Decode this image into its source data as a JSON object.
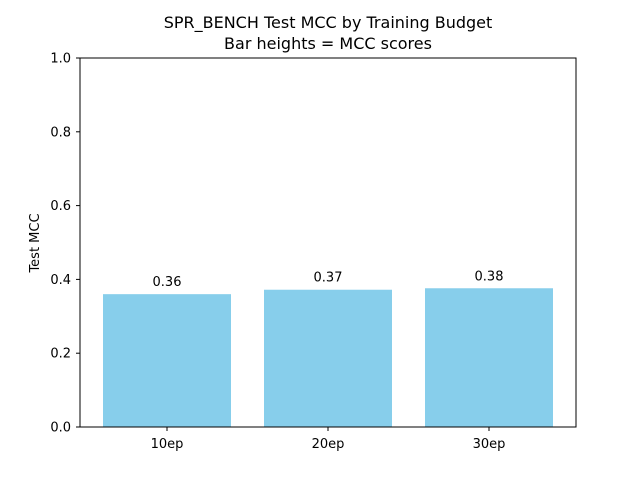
{
  "chart_data": {
    "type": "bar",
    "title": "SPR_BENCH Test MCC by Training Budget",
    "subtitle": "Bar heights = MCC scores",
    "xlabel": "",
    "ylabel": "Test MCC",
    "categories": [
      "10ep",
      "20ep",
      "30ep"
    ],
    "values": [
      0.36,
      0.372,
      0.376
    ],
    "value_labels": [
      "0.36",
      "0.37",
      "0.38"
    ],
    "ylim": [
      0,
      1.0
    ],
    "yticks": [
      0.0,
      0.2,
      0.4,
      0.6,
      0.8,
      1.0
    ],
    "ytick_labels": [
      "0.0",
      "0.2",
      "0.4",
      "0.6",
      "0.8",
      "1.0"
    ],
    "bar_color": "#87ceeb",
    "grid": false,
    "legend": "none"
  }
}
